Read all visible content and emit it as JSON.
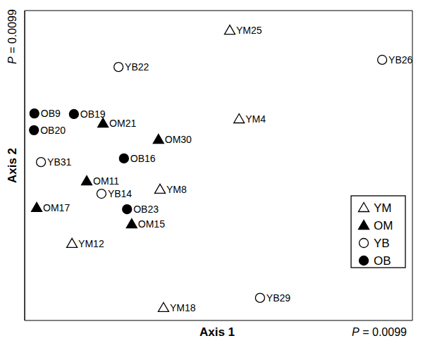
{
  "chart_data": {
    "type": "scatter",
    "x_label": "Axis 1",
    "y_label": "Axis 2",
    "annotations": [
      {
        "axis": "x",
        "text": "P = 0.0099"
      },
      {
        "axis": "y",
        "text": "P = 0.0099"
      }
    ],
    "xlim": [
      0,
      100
    ],
    "ylim": [
      0,
      100
    ],
    "tick_labels": false,
    "grid": false,
    "legend": "lower right",
    "series": [
      {
        "name": "YM",
        "color": "#000000",
        "marker": "triangle-open",
        "labels": [
          "YM25",
          "YM4",
          "YM8",
          "YM12",
          "YM18"
        ],
        "x": [
          52.9,
          55.3,
          34.9,
          12.2,
          35.8
        ],
        "y": [
          93.6,
          65.0,
          42.3,
          24.8,
          4.1
        ]
      },
      {
        "name": "OM",
        "color": "#000000",
        "marker": "triangle-filled",
        "labels": [
          "OM21",
          "OM30",
          "OM11",
          "OM17",
          "OM15"
        ],
        "x": [
          20.2,
          34.5,
          16.0,
          3.1,
          27.6
        ],
        "y": [
          63.6,
          58.4,
          45.0,
          36.4,
          31.1
        ]
      },
      {
        "name": "YB",
        "color": "#000000",
        "marker": "circle-open",
        "labels": [
          "YB22",
          "YB26",
          "YB31",
          "YB14",
          "YB29"
        ],
        "x": [
          24.2,
          92.2,
          4.2,
          19.8,
          60.7
        ],
        "y": [
          81.8,
          84.1,
          51.1,
          40.9,
          7.3
        ]
      },
      {
        "name": "OB",
        "color": "#000000",
        "marker": "circle-filled",
        "labels": [
          "OB9",
          "OB19",
          "OB20",
          "OB16",
          "OB23"
        ],
        "x": [
          2.5,
          12.7,
          2.4,
          25.6,
          26.4
        ],
        "y": [
          66.8,
          66.6,
          61.4,
          52.3,
          35.9
        ]
      }
    ]
  }
}
